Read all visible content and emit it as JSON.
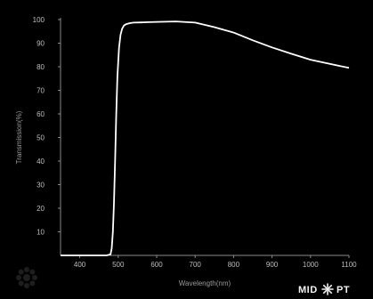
{
  "brand": {
    "text_left": "MID",
    "text_right": "PT"
  },
  "chart_data": {
    "type": "line",
    "xlabel": "Wavelength(nm)",
    "ylabel": "Transmission(%)",
    "xlim": [
      350,
      1100
    ],
    "ylim": [
      0,
      100
    ],
    "x_ticks": [
      400,
      500,
      600,
      700,
      800,
      900,
      1000,
      1100
    ],
    "y_ticks": [
      10,
      20,
      30,
      40,
      50,
      60,
      70,
      80,
      90,
      100
    ],
    "grid": false,
    "series": [
      {
        "color": "#ffffff",
        "x": [
          350,
          470,
          480,
          483,
          486,
          489,
          492,
          495,
          498,
          502,
          506,
          510,
          515,
          520,
          530,
          540,
          560,
          580,
          600,
          650,
          700,
          750,
          800,
          850,
          900,
          950,
          1000,
          1050,
          1100
        ],
        "y": [
          0,
          0,
          0.5,
          3,
          10,
          22,
          40,
          60,
          76,
          88,
          93.5,
          96,
          97.5,
          98,
          98.5,
          98.7,
          98.8,
          98.9,
          99,
          99.2,
          98.7,
          96.8,
          94.5,
          91.2,
          88.2,
          85.5,
          83,
          81.2,
          79.5
        ]
      }
    ]
  }
}
